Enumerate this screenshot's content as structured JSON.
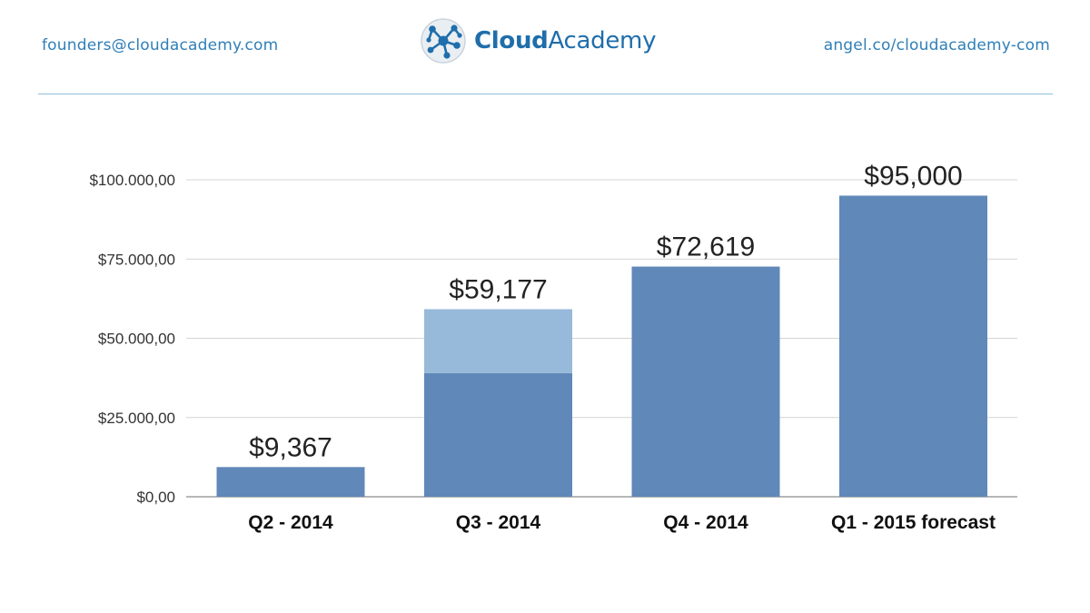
{
  "header": {
    "email": "founders@cloudacademy.com",
    "brand_bold": "Cloud",
    "brand_regular": "Academy",
    "angel_link": "angel.co/cloudacademy-com",
    "brand_color": "#1f6eab",
    "link_color": "#2f7fb8",
    "logo_icon": "network-nodes-icon"
  },
  "chart_data": {
    "type": "bar",
    "categories": [
      "Q2 - 2014",
      "Q3 - 2014",
      "Q4 - 2014",
      "Q1 - 2015 forecast"
    ],
    "series": [
      {
        "color": "#6088b8",
        "values": [
          9367,
          39000,
          72619,
          95000
        ]
      },
      {
        "color": "#97b9da",
        "values": [
          0,
          20177,
          0,
          0
        ]
      }
    ],
    "data_labels": [
      "$9,367",
      "$59,177",
      "$72,619",
      "$95,000"
    ],
    "y_ticks": [
      {
        "value": 0,
        "label": "$0,00"
      },
      {
        "value": 25000,
        "label": "$25.000,00"
      },
      {
        "value": 50000,
        "label": "$50.000,00"
      },
      {
        "value": 75000,
        "label": "$75.000,00"
      },
      {
        "value": 100000,
        "label": "$100.000,00"
      }
    ],
    "ylim": [
      0,
      100000
    ],
    "stacked": true,
    "grid": true,
    "title": "",
    "xlabel": "",
    "ylabel": ""
  }
}
